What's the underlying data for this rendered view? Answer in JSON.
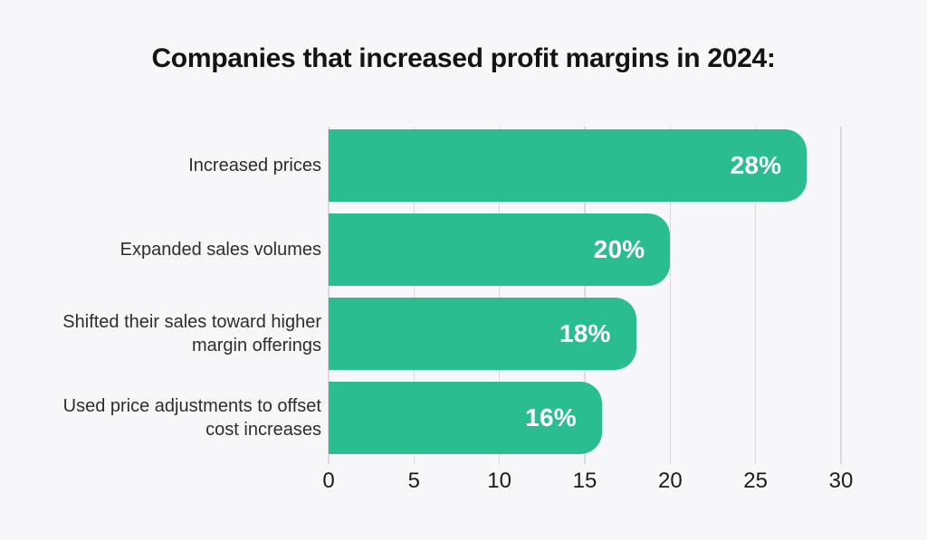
{
  "page": {
    "background_color": "#f7f7f9"
  },
  "chart_data": {
    "type": "bar",
    "orientation": "horizontal",
    "title": "Companies that increased profit margins in 2024:",
    "categories": [
      "Increased prices",
      "Expanded sales volumes",
      "Shifted their sales toward higher margin offerings",
      "Used price adjustments to offset cost increases"
    ],
    "values": [
      28,
      20,
      18,
      16
    ],
    "value_labels": [
      "28%",
      "20%",
      "18%",
      "16%"
    ],
    "xlabel": "",
    "ylabel": "",
    "xlim": [
      0,
      30
    ],
    "xticks": [
      0,
      5,
      10,
      15,
      20,
      25,
      30
    ],
    "grid": true,
    "legend": "none",
    "bar_color": "#2abd90",
    "value_label_color": "#ffffff",
    "gridline_color": "#d9d9de",
    "title_color": "#141414",
    "axis_label_color": "#1b1b1b",
    "category_label_color": "#2d2d2d"
  }
}
